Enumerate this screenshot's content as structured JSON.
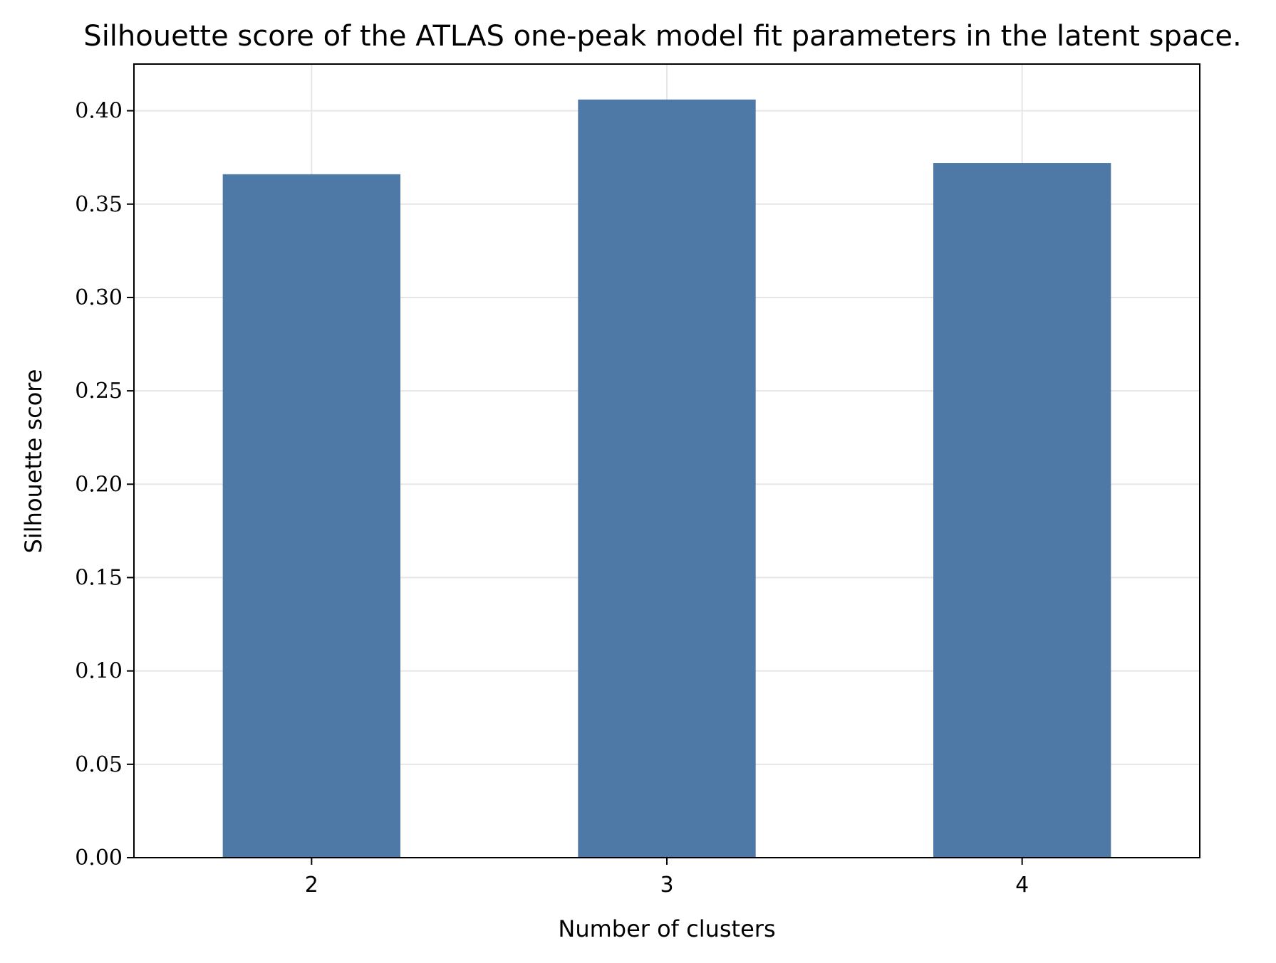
{
  "chart_data": {
    "type": "bar",
    "title": "Silhouette score of the ATLAS one-peak model fit parameters in the latent space.",
    "xlabel": "Number of clusters",
    "ylabel": "Silhouette score",
    "categories": [
      "2",
      "3",
      "4"
    ],
    "values": [
      0.366,
      0.406,
      0.372
    ],
    "ylim": [
      0,
      0.425
    ],
    "yticks": [
      0.0,
      0.05,
      0.1,
      0.15,
      0.2,
      0.25,
      0.3,
      0.35,
      0.4
    ],
    "ytick_labels": [
      "0.00",
      "0.05",
      "0.10",
      "0.15",
      "0.20",
      "0.25",
      "0.30",
      "0.35",
      "0.40"
    ],
    "grid": true,
    "legend": "none",
    "bar_color": "#4e78a5",
    "grid_color": "#e6e6e6"
  }
}
